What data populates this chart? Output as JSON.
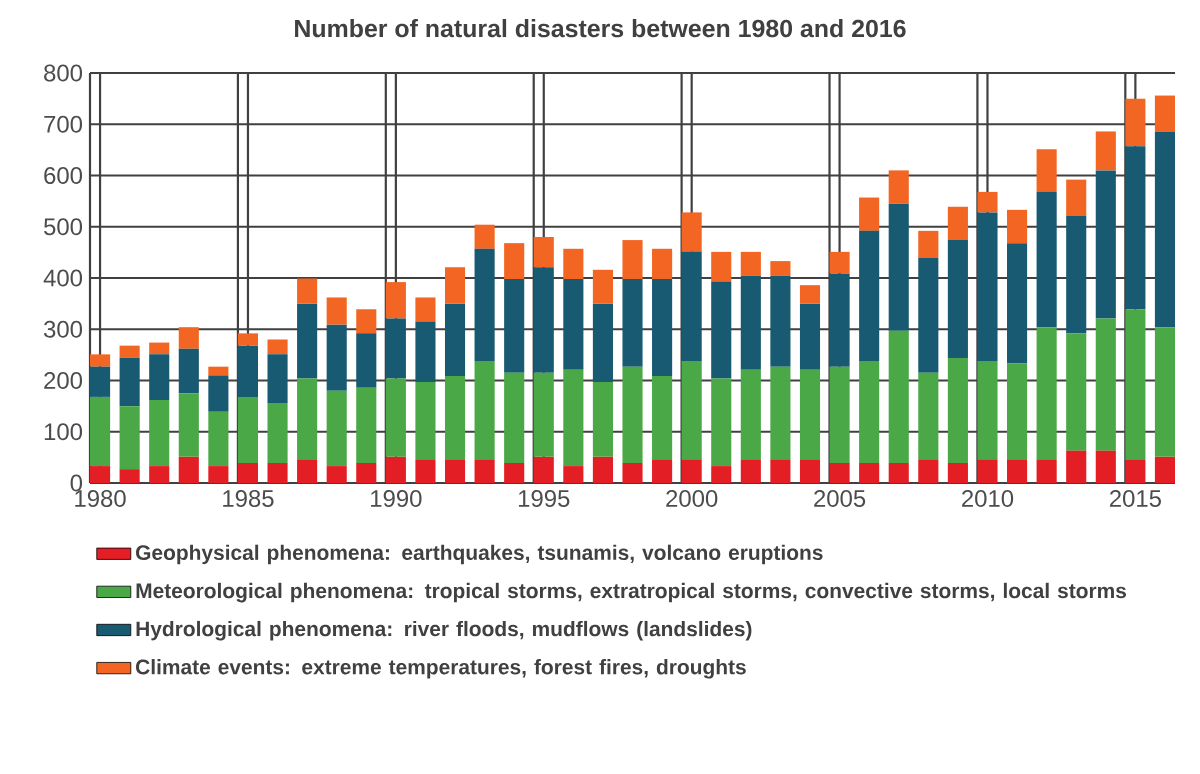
{
  "chart_data": {
    "type": "bar",
    "stacked": true,
    "title": "Number of natural disasters between 1980 and 2016",
    "categories": [
      "1980",
      null,
      null,
      null,
      null,
      "1985",
      null,
      null,
      null,
      null,
      "1990",
      null,
      null,
      null,
      null,
      "1995",
      null,
      null,
      null,
      null,
      "2000",
      null,
      null,
      null,
      null,
      "2005",
      null,
      null,
      null,
      null,
      "2010",
      null,
      null,
      null,
      null,
      "2015",
      null
    ],
    "series": [
      {
        "name": "**Geophysical phenomena: earthquakes, tsunamis, volcano eruptions**",
        "color": "#e31e24",
        "values": [
          33,
          27,
          33,
          51,
          33,
          39,
          39,
          45,
          33,
          39,
          51,
          45,
          45,
          45,
          39,
          51,
          33,
          51,
          39,
          45,
          45,
          33,
          45,
          45,
          45,
          39,
          39,
          39,
          45,
          39,
          45,
          45,
          45,
          63,
          63,
          45,
          51
        ]
      },
      {
        "name": "**Meteorological phenomena: tropical storms, extratropical storms, convective storms, local storms**",
        "color": "#4aa846",
        "values": [
          135,
          123,
          129,
          124,
          106,
          129,
          117,
          159,
          147,
          147,
          153,
          152,
          164,
          193,
          176,
          164,
          188,
          146,
          188,
          164,
          193,
          171,
          176,
          182,
          176,
          188,
          199,
          258,
          170,
          205,
          193,
          188,
          259,
          229,
          258,
          294,
          253
        ]
      },
      {
        "name": "**Hydrological phenomena: river floods, mudflows (landslides)**",
        "color": "#185a72",
        "values": [
          59,
          94,
          89,
          87,
          71,
          100,
          95,
          146,
          129,
          106,
          117,
          118,
          141,
          219,
          183,
          206,
          177,
          153,
          171,
          189,
          213,
          189,
          183,
          177,
          129,
          182,
          254,
          248,
          224,
          230,
          290,
          235,
          265,
          230,
          289,
          318,
          382
        ]
      },
      {
        "name": "**Climate events: extreme temperatures, forest fires, droughts**",
        "color": "#f26522",
        "values": [
          24,
          24,
          23,
          42,
          17,
          24,
          29,
          49,
          53,
          47,
          71,
          47,
          71,
          47,
          70,
          59,
          59,
          66,
          76,
          59,
          77,
          58,
          47,
          29,
          36,
          42,
          65,
          65,
          53,
          65,
          40,
          65,
          82,
          70,
          76,
          93,
          70
        ]
      }
    ],
    "ylim": [
      0,
      800
    ],
    "yticks": [
      0,
      100,
      200,
      300,
      400,
      500,
      600,
      700,
      800
    ],
    "grid": true,
    "legend": "bottom"
  }
}
